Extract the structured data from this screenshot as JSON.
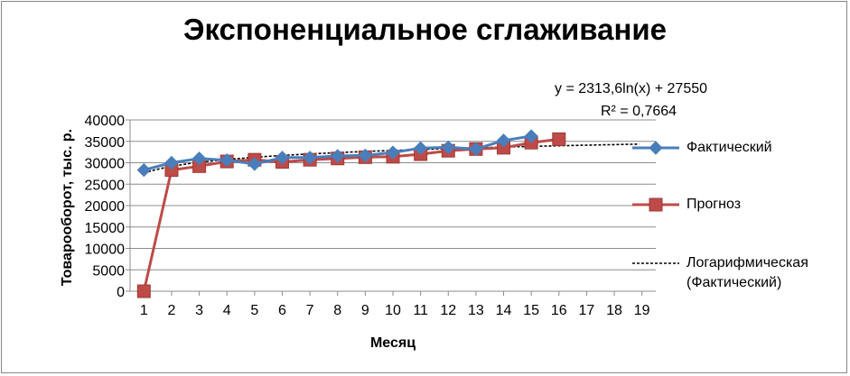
{
  "chart_data": {
    "type": "line",
    "title": "Экспоненциальное сглаживание",
    "xlabel": "Месяц",
    "ylabel": "Товарооборот, тыс. р.",
    "x": [
      1,
      2,
      3,
      4,
      5,
      6,
      7,
      8,
      9,
      10,
      11,
      12,
      13,
      14,
      15,
      16,
      17,
      18,
      19
    ],
    "ylim": [
      0,
      40000
    ],
    "yticks": [
      0,
      5000,
      10000,
      15000,
      20000,
      25000,
      30000,
      35000,
      40000
    ],
    "grid": "horizontal",
    "legend_position": "right",
    "series": [
      {
        "name": "Фактический",
        "color": "#4a7ebb",
        "marker": "diamond",
        "x": [
          1,
          2,
          3,
          4,
          5,
          6,
          7,
          8,
          9,
          10,
          11,
          12,
          13,
          14,
          15
        ],
        "values": [
          28300,
          30000,
          31000,
          30600,
          29700,
          31200,
          31200,
          31600,
          31700,
          32400,
          33400,
          33600,
          33200,
          35200,
          36200
        ]
      },
      {
        "name": "Прогноз",
        "color": "#be4b48",
        "marker": "square",
        "x": [
          1,
          2,
          3,
          4,
          5,
          6,
          7,
          8,
          9,
          10,
          11,
          12,
          13,
          14,
          15,
          16
        ],
        "values": [
          0,
          28300,
          29200,
          30300,
          30700,
          30200,
          30700,
          31000,
          31300,
          31400,
          32000,
          32800,
          33200,
          33500,
          34700,
          35500
        ]
      },
      {
        "name": "Логарифмическая (Фактический)",
        "color": "#000000",
        "style": "dashed",
        "trendline": "logarithmic",
        "fit": {
          "a": 2313.6,
          "b": 27550
        }
      }
    ],
    "annotations": {
      "equation": "y = 2313,6ln(x) + 27550",
      "r_squared": "R² = 0,7664"
    }
  },
  "legend": {
    "actual": "Фактический",
    "forecast": "Прогноз",
    "trend_line1": "Логарифмическая",
    "trend_line2": "(Фактический)"
  }
}
